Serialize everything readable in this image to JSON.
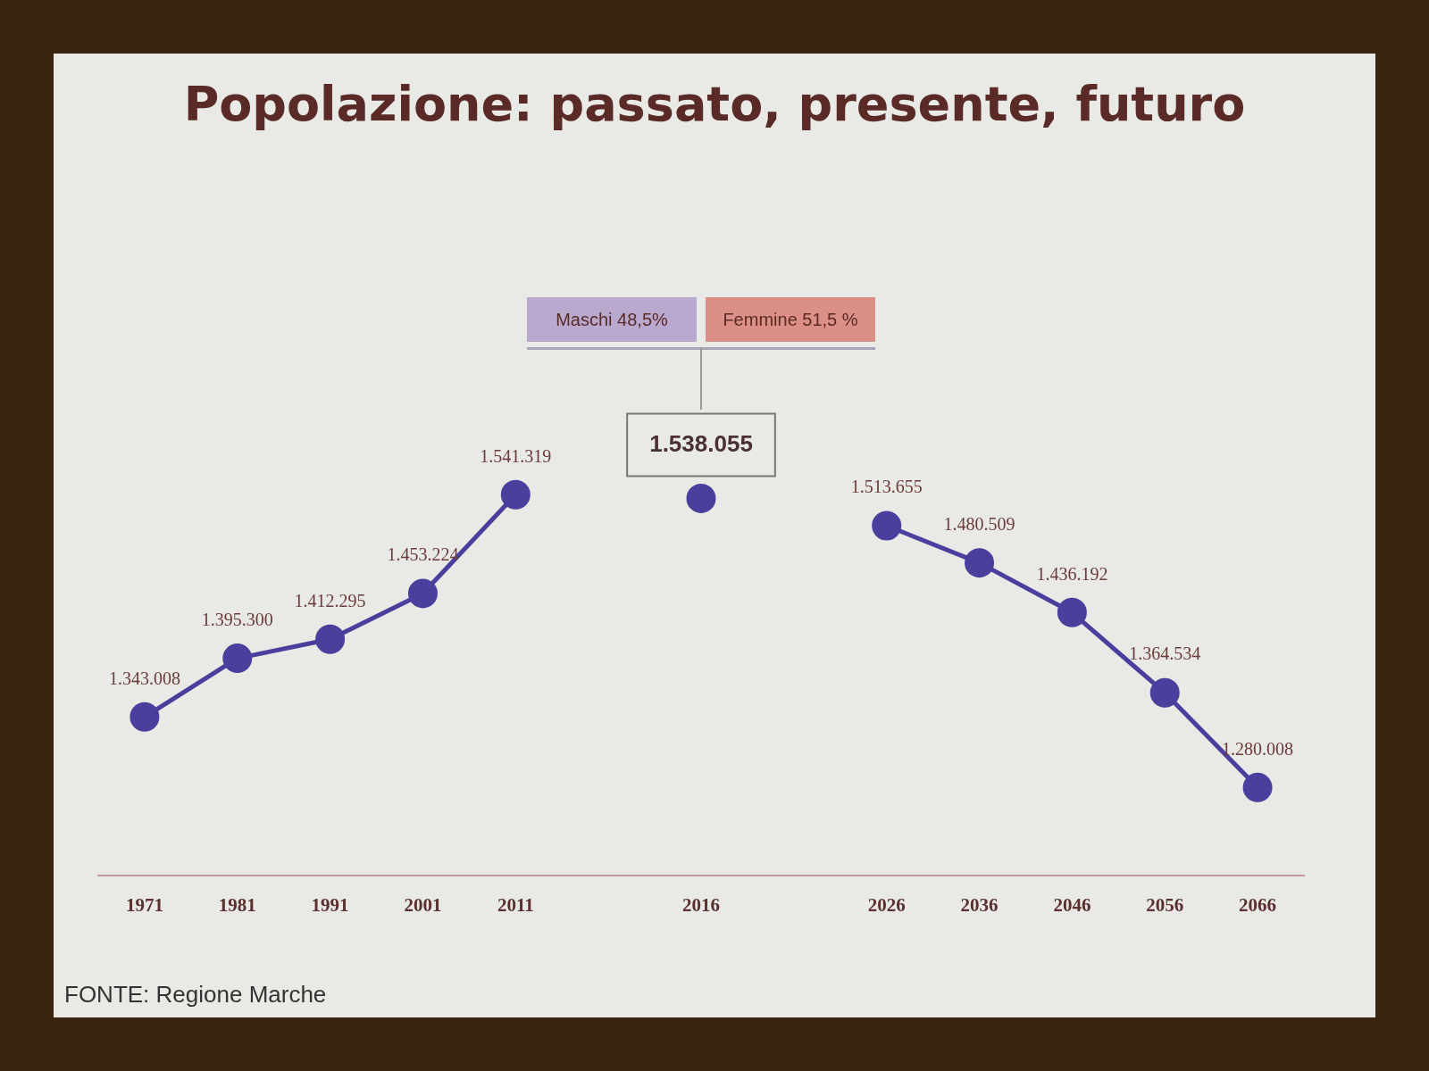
{
  "chart_data": {
    "type": "line",
    "title": "Popolazione: passato, presente, futuro",
    "categories": [
      "1971",
      "1981",
      "1991",
      "2001",
      "2011",
      null,
      "2016",
      null,
      "2026",
      "2036",
      "2046",
      "2056",
      "2066"
    ],
    "series": [
      {
        "color": "#4a3f9c",
        "values": [
          1343008,
          1395300,
          1412295,
          1453224,
          1541319,
          null,
          null,
          null,
          null,
          null,
          null,
          null,
          null
        ],
        "value_labels": [
          "1.343.008",
          "1.395.300",
          "1.412.295",
          "1.453.224",
          "1.541.319",
          null,
          null,
          null,
          null,
          null,
          null,
          null,
          null
        ]
      },
      {
        "color": "#4a3f9c",
        "values": [
          null,
          null,
          null,
          null,
          null,
          null,
          1538055,
          null,
          null,
          null,
          null,
          null,
          null
        ],
        "value_labels": [
          null,
          null,
          null,
          null,
          null,
          null,
          "1.538.055",
          null,
          null,
          null,
          null,
          null,
          null
        ]
      },
      {
        "color": "#4a3f9c",
        "values": [
          null,
          null,
          null,
          null,
          null,
          null,
          null,
          null,
          1513655,
          1480509,
          1436192,
          1364534,
          1280008
        ],
        "value_labels": [
          null,
          null,
          null,
          null,
          null,
          null,
          null,
          null,
          "1.513.655",
          "1.480.509",
          "1.436.192",
          "1.364.534",
          "1.280.008"
        ]
      }
    ],
    "marker": "circle",
    "line_style": "solid",
    "grid": false,
    "legend": false,
    "annotations": [
      "Maschi 48,5%",
      "Femmine 51,5 %",
      "FONTE: Regione Marche"
    ]
  }
}
